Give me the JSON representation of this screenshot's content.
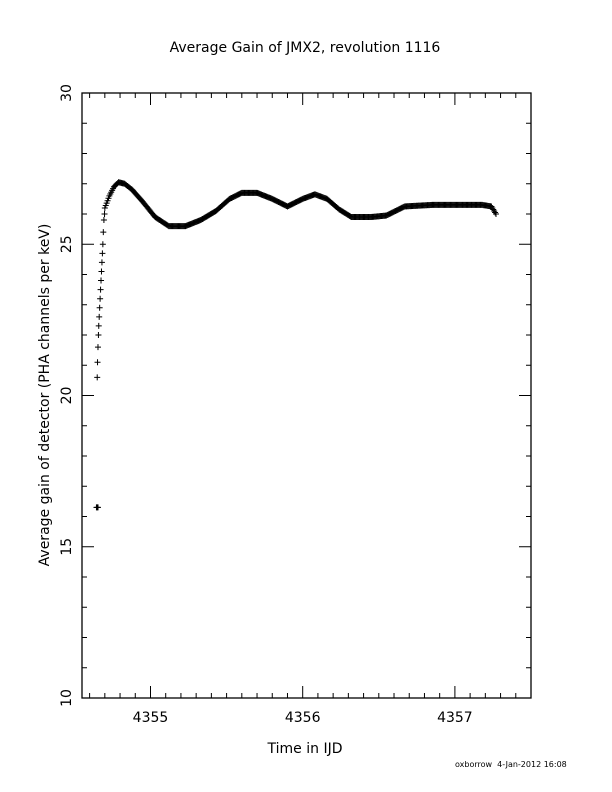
{
  "chart_data": {
    "type": "scatter",
    "title": "Average Gain of JMX2, revolution 1116",
    "xlabel": "Time in IJD",
    "ylabel": "Average gain of detector (PHA channels per keV)",
    "xlim": [
      4354.55,
      4357.5
    ],
    "ylim": [
      10,
      30
    ],
    "xticks": [
      4355,
      4356,
      4357
    ],
    "yticks": [
      10,
      15,
      20,
      25,
      30
    ],
    "grid": false,
    "marker": "plus",
    "curve_keypoints": {
      "x": [
        4354.7,
        4354.73,
        4354.76,
        4354.79,
        4354.83,
        4354.88,
        4354.95,
        4355.03,
        4355.12,
        4355.23,
        4355.33,
        4355.43,
        4355.52,
        4355.6,
        4355.7,
        4355.8,
        4355.9,
        4356.0,
        4356.08,
        4356.16,
        4356.24,
        4356.32,
        4356.45,
        4356.55,
        4356.67,
        4356.85,
        4357.05,
        4357.18,
        4357.24,
        4357.27
      ],
      "y": [
        26.2,
        26.6,
        26.9,
        27.05,
        27.0,
        26.8,
        26.4,
        25.9,
        25.6,
        25.6,
        25.8,
        26.1,
        26.5,
        26.7,
        26.7,
        26.5,
        26.25,
        26.5,
        26.65,
        26.5,
        26.15,
        25.9,
        25.9,
        25.95,
        26.25,
        26.3,
        26.3,
        26.3,
        26.25,
        26.0
      ]
    },
    "ramp_points": {
      "x": [
        4354.65,
        4354.652,
        4354.655,
        4354.658,
        4354.66,
        4354.663,
        4354.666,
        4354.669,
        4354.672,
        4354.675,
        4354.678,
        4354.681,
        4354.684,
        4354.687,
        4354.69,
        4354.694,
        4354.698
      ],
      "y": [
        20.6,
        21.1,
        21.6,
        22.0,
        22.3,
        22.6,
        22.9,
        23.2,
        23.5,
        23.8,
        24.1,
        24.4,
        24.7,
        25.0,
        25.4,
        25.8,
        26.0
      ]
    },
    "outlier_points": {
      "x": [
        4354.645,
        4354.65,
        4354.655
      ],
      "y": [
        16.3,
        16.3,
        16.3
      ]
    }
  },
  "footer": {
    "user": "oxborrow",
    "timestamp": "4-Jan-2012 16:08"
  }
}
